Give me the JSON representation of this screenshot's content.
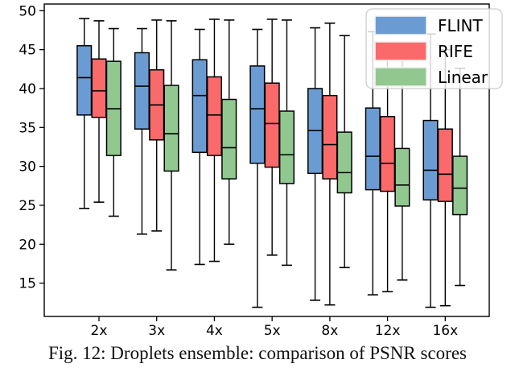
{
  "figure": {
    "caption": "Fig. 12: Droplets ensemble: comparison of PSNR scores"
  },
  "chart_data": {
    "type": "boxplot",
    "title": "",
    "xlabel": "",
    "ylabel": "",
    "categories": [
      "2x",
      "3x",
      "4x",
      "5x",
      "8x",
      "12x",
      "16x"
    ],
    "yticks": [
      15,
      20,
      25,
      30,
      35,
      40,
      45,
      50
    ],
    "ylim": [
      10.7,
      50.9
    ],
    "grid": false,
    "legend": {
      "position": "upper right",
      "entries": [
        "FLINT",
        "RIFE",
        "Linear"
      ]
    },
    "colors": {
      "FLINT": "#6a9cd3",
      "RIFE": "#fa6a6a",
      "Linear": "#90c890",
      "edge": "#000000",
      "legend_border": "#cccccc"
    },
    "series": [
      {
        "name": "FLINT",
        "color": "#6a9cd3",
        "boxes": [
          {
            "whislo": 24.6,
            "q1": 36.6,
            "med": 41.4,
            "q3": 45.5,
            "whishi": 49.0
          },
          {
            "whislo": 21.3,
            "q1": 34.8,
            "med": 40.3,
            "q3": 44.6,
            "whishi": 47.7
          },
          {
            "whislo": 17.4,
            "q1": 31.8,
            "med": 39.1,
            "q3": 43.7,
            "whishi": 47.6
          },
          {
            "whislo": 11.9,
            "q1": 30.4,
            "med": 37.4,
            "q3": 42.9,
            "whishi": 47.6
          },
          {
            "whislo": 12.8,
            "q1": 29.1,
            "med": 34.6,
            "q3": 40.0,
            "whishi": 47.8
          },
          {
            "whislo": 13.5,
            "q1": 27.0,
            "med": 31.3,
            "q3": 37.5,
            "whishi": 47.3
          },
          {
            "whislo": 11.9,
            "q1": 25.7,
            "med": 29.5,
            "q3": 35.9,
            "whishi": 47.0
          }
        ]
      },
      {
        "name": "RIFE",
        "color": "#fa6a6a",
        "boxes": [
          {
            "whislo": 25.4,
            "q1": 36.3,
            "med": 39.7,
            "q3": 43.8,
            "whishi": 48.7
          },
          {
            "whislo": 21.7,
            "q1": 33.4,
            "med": 37.9,
            "q3": 42.4,
            "whishi": 48.8
          },
          {
            "whislo": 17.8,
            "q1": 31.4,
            "med": 36.6,
            "q3": 41.5,
            "whishi": 48.9
          },
          {
            "whislo": 18.6,
            "q1": 29.9,
            "med": 35.5,
            "q3": 40.7,
            "whishi": 48.9
          },
          {
            "whislo": 12.2,
            "q1": 28.4,
            "med": 32.8,
            "q3": 39.1,
            "whishi": 48.4
          },
          {
            "whislo": 13.9,
            "q1": 26.8,
            "med": 30.4,
            "q3": 36.4,
            "whishi": 45.9
          },
          {
            "whislo": 12.1,
            "q1": 25.5,
            "med": 29.0,
            "q3": 34.8,
            "whishi": 45.0
          }
        ]
      },
      {
        "name": "Linear",
        "color": "#90c890",
        "boxes": [
          {
            "whislo": 23.6,
            "q1": 31.4,
            "med": 37.4,
            "q3": 43.5,
            "whishi": 47.7
          },
          {
            "whislo": 16.7,
            "q1": 29.4,
            "med": 34.2,
            "q3": 40.4,
            "whishi": 48.7
          },
          {
            "whislo": 20.0,
            "q1": 28.4,
            "med": 32.4,
            "q3": 38.6,
            "whishi": 48.8
          },
          {
            "whislo": 17.3,
            "q1": 27.8,
            "med": 31.5,
            "q3": 37.1,
            "whishi": 48.8
          },
          {
            "whislo": 17.0,
            "q1": 26.6,
            "med": 29.2,
            "q3": 34.4,
            "whishi": 46.8
          },
          {
            "whislo": 15.4,
            "q1": 24.9,
            "med": 27.6,
            "q3": 32.3,
            "whishi": 44.0
          },
          {
            "whislo": 14.7,
            "q1": 23.8,
            "med": 27.2,
            "q3": 31.3,
            "whishi": 42.6
          }
        ]
      }
    ]
  }
}
